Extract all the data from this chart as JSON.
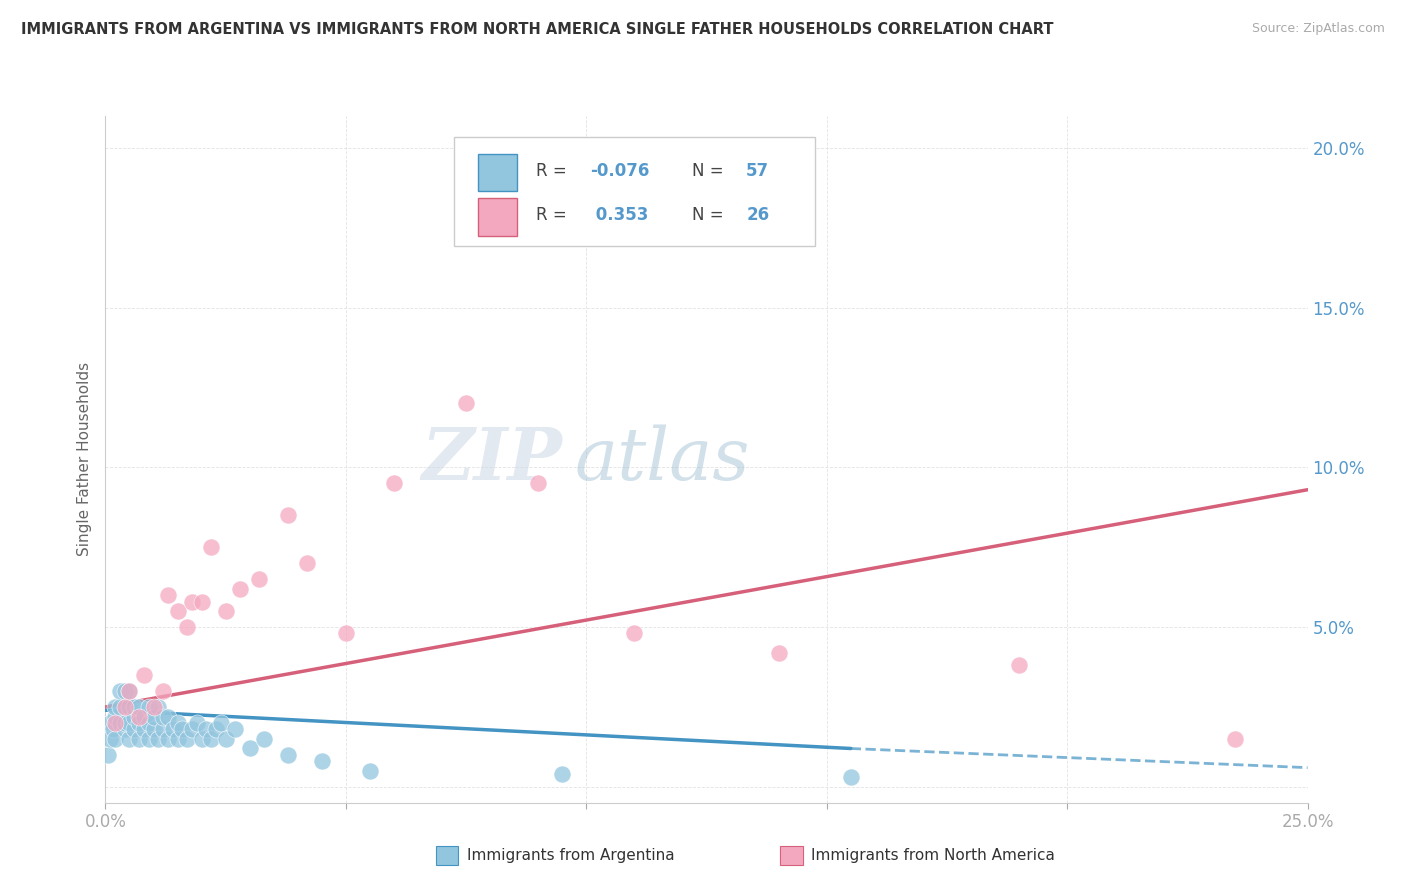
{
  "title": "IMMIGRANTS FROM ARGENTINA VS IMMIGRANTS FROM NORTH AMERICA SINGLE FATHER HOUSEHOLDS CORRELATION CHART",
  "source": "Source: ZipAtlas.com",
  "ylabel": "Single Father Households",
  "xlim": [
    0,
    0.25
  ],
  "ylim": [
    -0.005,
    0.21
  ],
  "color_blue": "#92c5de",
  "color_pink": "#f4a8c0",
  "color_blue_line": "#4393c3",
  "color_pink_line": "#d6607a",
  "color_grid": "#e0e0e0",
  "color_tick": "#5599cc",
  "watermark_zip": "#c8d8e8",
  "watermark_atlas": "#a8c8d8",
  "argentina_x": [
    0.0005,
    0.001,
    0.001,
    0.0015,
    0.002,
    0.002,
    0.002,
    0.003,
    0.003,
    0.003,
    0.004,
    0.004,
    0.004,
    0.005,
    0.005,
    0.005,
    0.005,
    0.006,
    0.006,
    0.006,
    0.007,
    0.007,
    0.007,
    0.008,
    0.008,
    0.009,
    0.009,
    0.009,
    0.01,
    0.01,
    0.011,
    0.011,
    0.012,
    0.012,
    0.013,
    0.013,
    0.014,
    0.015,
    0.015,
    0.016,
    0.017,
    0.018,
    0.019,
    0.02,
    0.021,
    0.022,
    0.023,
    0.024,
    0.025,
    0.027,
    0.03,
    0.033,
    0.038,
    0.045,
    0.055,
    0.095,
    0.155
  ],
  "argentina_y": [
    0.01,
    0.015,
    0.02,
    0.018,
    0.022,
    0.015,
    0.025,
    0.02,
    0.025,
    0.03,
    0.018,
    0.02,
    0.03,
    0.015,
    0.02,
    0.025,
    0.03,
    0.018,
    0.022,
    0.025,
    0.015,
    0.02,
    0.025,
    0.018,
    0.022,
    0.015,
    0.02,
    0.025,
    0.018,
    0.022,
    0.015,
    0.025,
    0.018,
    0.022,
    0.015,
    0.022,
    0.018,
    0.015,
    0.02,
    0.018,
    0.015,
    0.018,
    0.02,
    0.015,
    0.018,
    0.015,
    0.018,
    0.02,
    0.015,
    0.018,
    0.012,
    0.015,
    0.01,
    0.008,
    0.005,
    0.004,
    0.003
  ],
  "north_america_x": [
    0.002,
    0.004,
    0.005,
    0.007,
    0.008,
    0.01,
    0.012,
    0.013,
    0.015,
    0.017,
    0.018,
    0.02,
    0.022,
    0.025,
    0.028,
    0.032,
    0.038,
    0.042,
    0.05,
    0.06,
    0.075,
    0.09,
    0.11,
    0.14,
    0.19,
    0.235
  ],
  "north_america_y": [
    0.02,
    0.025,
    0.03,
    0.022,
    0.035,
    0.025,
    0.03,
    0.06,
    0.055,
    0.05,
    0.058,
    0.058,
    0.075,
    0.055,
    0.062,
    0.065,
    0.085,
    0.07,
    0.048,
    0.095,
    0.12,
    0.095,
    0.048,
    0.042,
    0.038,
    0.015
  ]
}
